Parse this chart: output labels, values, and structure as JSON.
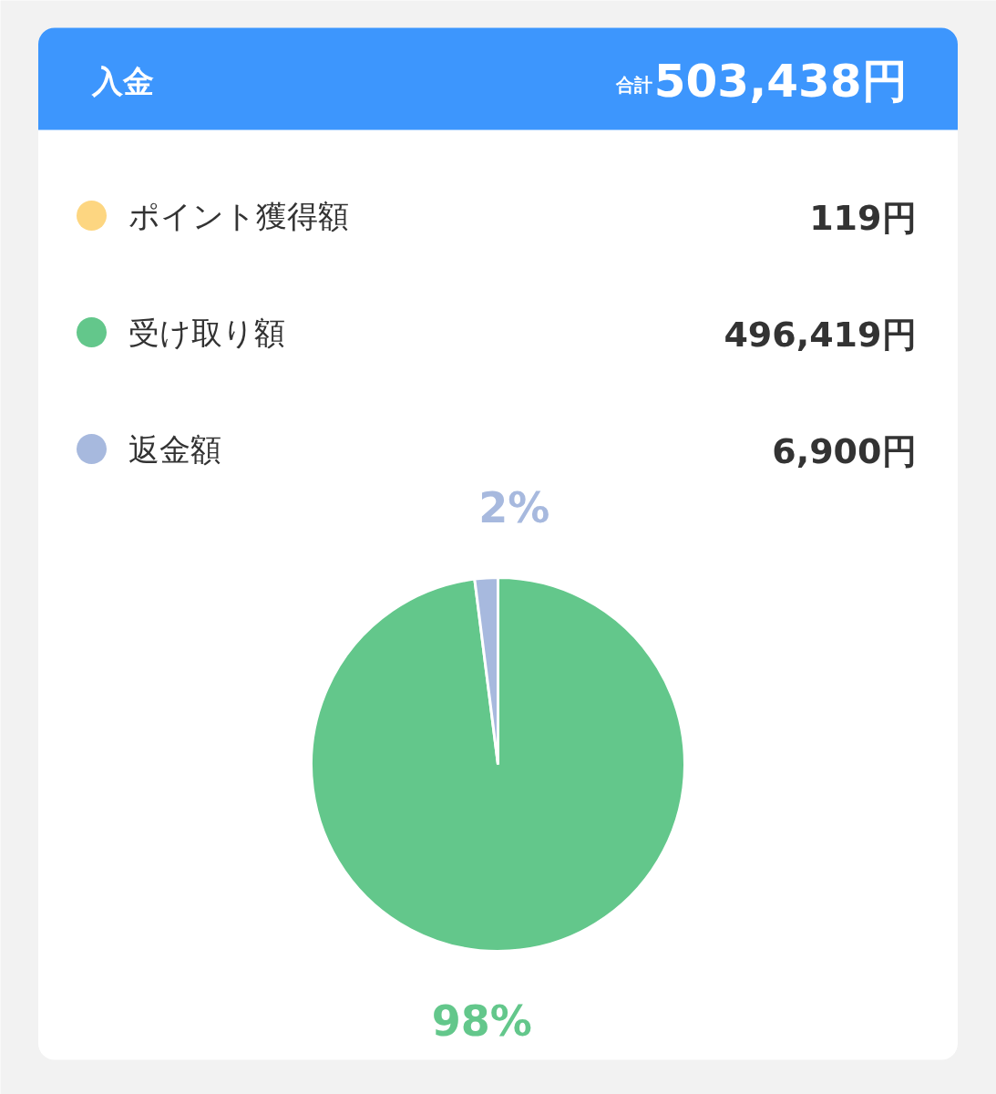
{
  "chart_data": {
    "type": "pie",
    "title": "入金",
    "categories": [
      "ポイント獲得額",
      "受け取り額",
      "返金額"
    ],
    "values": [
      null,
      98,
      2
    ],
    "colors": [
      "#fdd681",
      "#63c78b",
      "#a7b9de"
    ],
    "value_labels": [
      null,
      "98%",
      "2%"
    ],
    "legend": "top",
    "annotations": [
      "合計",
      "503,438円",
      "119円",
      "496,419円",
      "6,900円"
    ]
  }
}
